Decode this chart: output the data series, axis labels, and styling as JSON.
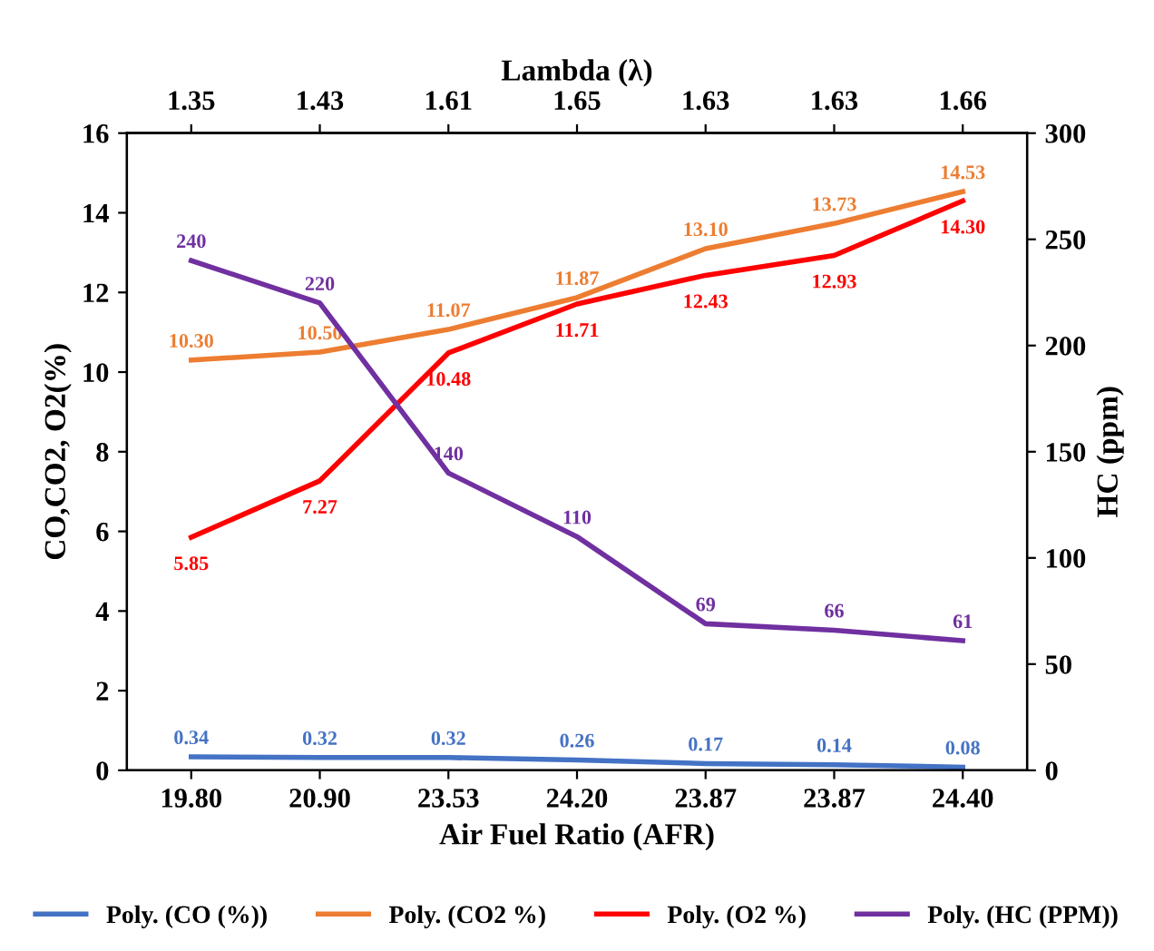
{
  "chart_data": {
    "type": "line",
    "xlabel": "Air Fuel Ratio (AFR)",
    "x2label": "Lambda (λ)",
    "ylabel": "CO,CO2, O2(%)",
    "y2label": "HC (ppm)",
    "categories": [
      "19.80",
      "20.90",
      "23.53",
      "24.20",
      "23.87",
      "23.87",
      "24.40"
    ],
    "annotations": [
      "1.35",
      "1.43",
      "1.61",
      "1.65",
      "1.63",
      "1.63",
      "1.66"
    ],
    "ylim": [
      0,
      16
    ],
    "yticks": [
      0,
      2,
      4,
      6,
      8,
      10,
      12,
      14,
      16
    ],
    "y2lim": [
      0,
      300
    ],
    "y2ticks": [
      0,
      50,
      100,
      150,
      200,
      250,
      300
    ],
    "series": [
      {
        "name": "Poly. (CO (%))",
        "color": "#4472c4",
        "values": [
          0.34,
          0.32,
          0.32,
          0.26,
          0.17,
          0.14,
          0.08
        ],
        "value_labels": [
          "0.34",
          "0.32",
          "0.32",
          "0.26",
          "0.17",
          "0.14",
          "0.08"
        ]
      },
      {
        "name": "Poly. (CO2 %)",
        "color": "#ed7d31",
        "values": [
          10.3,
          10.5,
          11.07,
          11.87,
          13.1,
          13.73,
          14.53
        ],
        "value_labels": [
          "10.30",
          "10.50",
          "11.07",
          "11.87",
          "13.10",
          "13.73",
          "14.53"
        ]
      },
      {
        "name": "Poly. (O2 %)",
        "color": "#ff0000",
        "values": [
          5.85,
          7.27,
          10.48,
          11.71,
          12.43,
          12.93,
          14.3
        ],
        "value_labels": [
          "5.85",
          "7.27",
          "10.48",
          "11.71",
          "12.43",
          "12.93",
          "14.30"
        ]
      },
      {
        "name": "Poly. (HC (PPM))",
        "color": "#7030a0",
        "axis": "y2",
        "values": [
          240,
          220,
          140,
          110,
          69,
          66,
          61
        ],
        "value_labels": [
          "240",
          "220",
          "140",
          "110",
          "69",
          "66",
          "61"
        ]
      }
    ],
    "legend": "bottom",
    "grid": false,
    "marker": "none",
    "line_style": "solid"
  }
}
